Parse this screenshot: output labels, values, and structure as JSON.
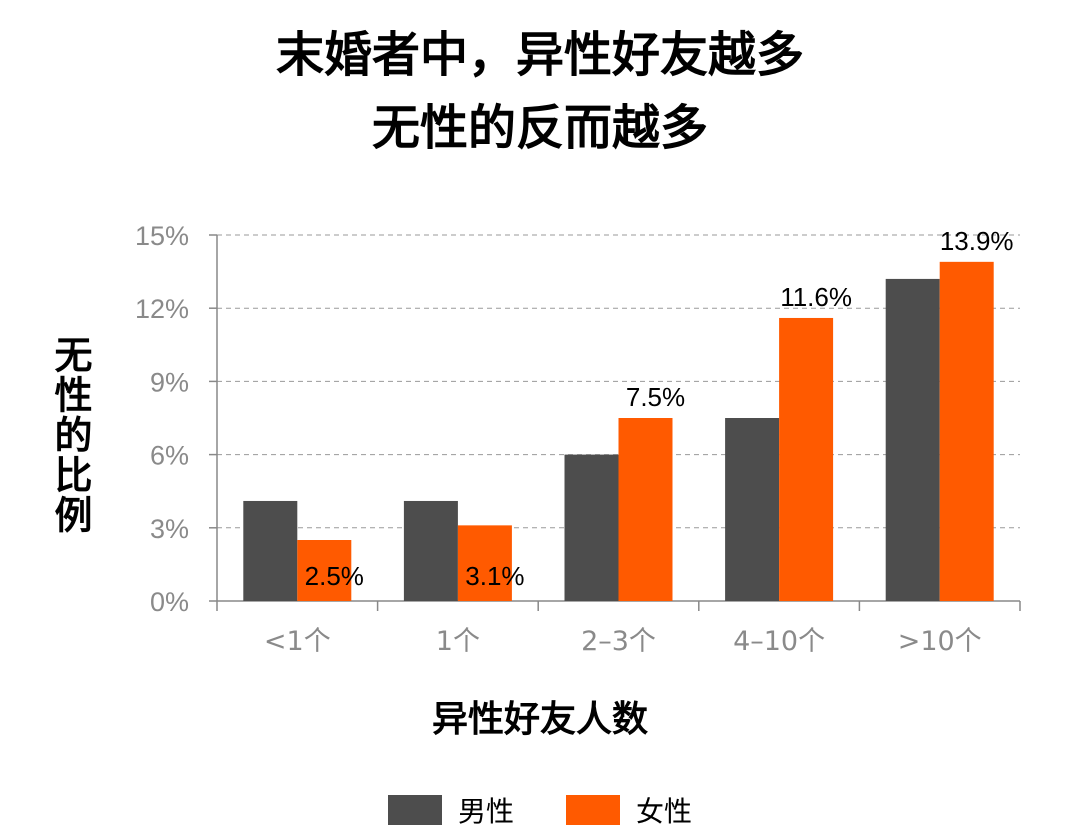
{
  "title": [
    "末婚者中，异性好友越多",
    "无性的反而越多"
  ],
  "colors": {
    "male": "#4d4d4d",
    "female": "#ff5a00"
  },
  "chart_data": {
    "type": "bar",
    "title": "末婚者中，异性好友越多 无性的反而越多",
    "xlabel": "异性好友人数",
    "ylabel": "无性的比例",
    "categories": [
      "<1个",
      "1个",
      "2–3个",
      "4–10个",
      ">10个"
    ],
    "ylim": [
      0,
      15
    ],
    "yticks": [
      "0%",
      "3%",
      "6%",
      "9%",
      "12%",
      "15%"
    ],
    "ytick_values": [
      0,
      3,
      6,
      9,
      12,
      15
    ],
    "grid": true,
    "legend_position": "bottom",
    "series": [
      {
        "name": "男性",
        "values": [
          4.1,
          4.1,
          6.0,
          7.5,
          13.2
        ],
        "labels": [
          "",
          "",
          "",
          "",
          ""
        ]
      },
      {
        "name": "女性",
        "values": [
          2.5,
          3.1,
          7.5,
          11.6,
          13.9
        ],
        "labels": [
          "2.5%",
          "3.1%",
          "7.5%",
          "11.6%",
          "13.9%"
        ]
      }
    ]
  }
}
